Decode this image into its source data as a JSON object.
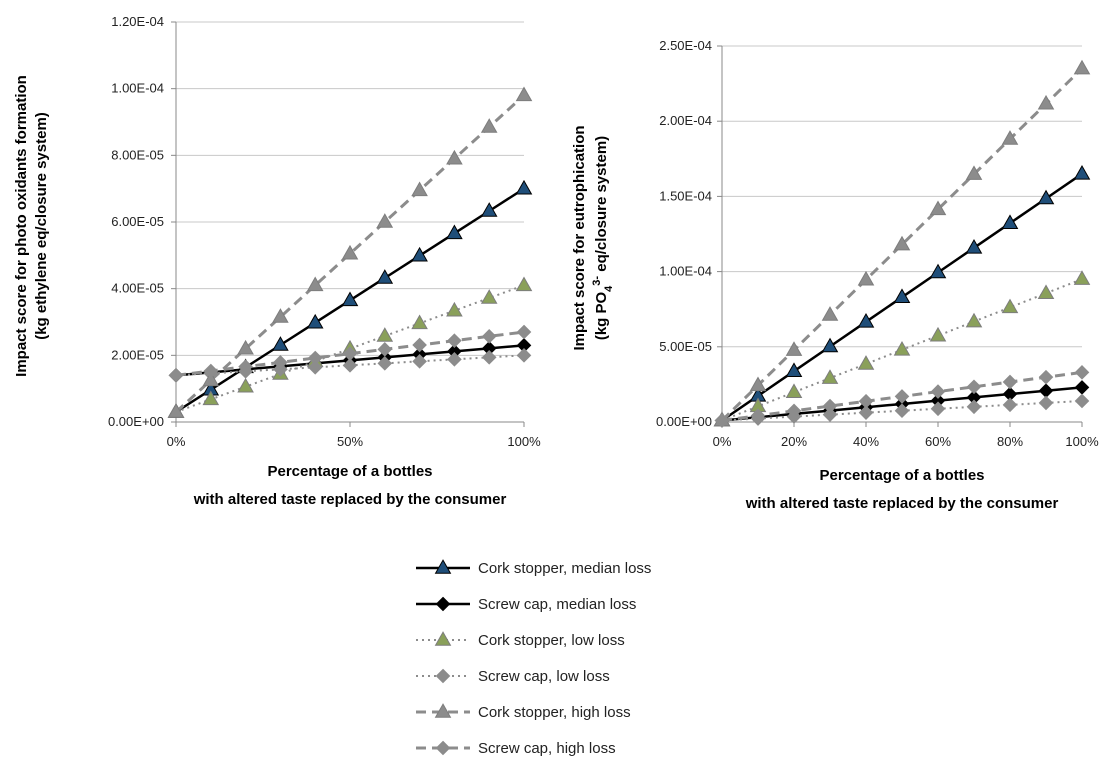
{
  "series_styles": [
    {
      "key": "cork_median",
      "color": "#000000",
      "marker": "triangle",
      "marker_fill": "#1f4e79",
      "dash": "",
      "width": 2.5
    },
    {
      "key": "screw_median",
      "color": "#000000",
      "marker": "diamond",
      "marker_fill": "#000000",
      "dash": "",
      "width": 2.5
    },
    {
      "key": "cork_low",
      "color": "#8c8c8c",
      "marker": "triangle",
      "marker_fill": "#8aa05a",
      "dash": "2,4",
      "width": 2
    },
    {
      "key": "screw_low",
      "color": "#8c8c8c",
      "marker": "diamond",
      "marker_fill": "#8c8c8c",
      "dash": "2,4",
      "width": 2
    },
    {
      "key": "cork_high",
      "color": "#8c8c8c",
      "marker": "triangle",
      "marker_fill": "#8c8c8c",
      "dash": "10,6",
      "width": 3
    },
    {
      "key": "screw_high",
      "color": "#8c8c8c",
      "marker": "diamond",
      "marker_fill": "#8c8c8c",
      "dash": "10,6",
      "width": 3
    }
  ],
  "legend": {
    "placement": "bottom-center",
    "items": [
      "Cork stopper, median loss",
      "Screw cap, median loss",
      "Cork stopper, low loss",
      "Screw cap, low loss",
      "Cork stopper, high loss",
      "Screw cap, high loss"
    ]
  },
  "chart_data": [
    {
      "type": "line",
      "ylabel_lines": [
        "Impact score for photo oxidants formation",
        "(kg ethylene  eq/closure system)"
      ],
      "xlabel_lines": [
        "Percentage of a bottles",
        "with altered taste replaced by the consumer"
      ],
      "x": [
        0,
        10,
        20,
        30,
        40,
        50,
        60,
        70,
        80,
        90,
        100
      ],
      "xlim": [
        0,
        100
      ],
      "x_ticks": [
        0,
        50,
        100
      ],
      "x_tick_labels": [
        "0%",
        "50%",
        "100%"
      ],
      "ylim": [
        0,
        0.00012
      ],
      "y_ticks": [
        0,
        2e-05,
        4e-05,
        6e-05,
        8e-05,
        0.0001,
        0.00012
      ],
      "y_tick_labels": [
        "0.00E+00",
        "2.00E-05",
        "4.00E-05",
        "6.00E-05",
        "8.00E-05",
        "1.00E-04",
        "1.20E-04"
      ],
      "grid": "horizontal",
      "series": [
        {
          "name": "Cork stopper, median loss",
          "values": [
            3e-06,
            9.7e-06,
            1.64e-05,
            2.31e-05,
            2.98e-05,
            3.65e-05,
            4.32e-05,
            4.99e-05,
            5.66e-05,
            6.33e-05,
            7e-05
          ]
        },
        {
          "name": "Screw cap, median loss",
          "values": [
            1.4e-05,
            1.49e-05,
            1.58e-05,
            1.67e-05,
            1.76e-05,
            1.85e-05,
            1.94e-05,
            2.03e-05,
            2.12e-05,
            2.21e-05,
            2.3e-05
          ]
        },
        {
          "name": "Cork stopper, low loss",
          "values": [
            3e-06,
            6.8e-06,
            1.06e-05,
            1.44e-05,
            1.82e-05,
            2.2e-05,
            2.58e-05,
            2.96e-05,
            3.34e-05,
            3.72e-05,
            4.1e-05
          ]
        },
        {
          "name": "Screw cap, low loss",
          "values": [
            1.4e-05,
            1.46e-05,
            1.52e-05,
            1.58e-05,
            1.64e-05,
            1.7e-05,
            1.76e-05,
            1.82e-05,
            1.88e-05,
            1.94e-05,
            2e-05
          ]
        },
        {
          "name": "Cork stopper, high loss",
          "values": [
            3e-06,
            1.25e-05,
            2.2e-05,
            3.15e-05,
            4.1e-05,
            5.05e-05,
            6e-05,
            6.95e-05,
            7.9e-05,
            8.85e-05,
            9.8e-05
          ]
        },
        {
          "name": "Screw cap, high loss",
          "values": [
            1.4e-05,
            1.53e-05,
            1.66e-05,
            1.79e-05,
            1.92e-05,
            2.05e-05,
            2.18e-05,
            2.31e-05,
            2.44e-05,
            2.57e-05,
            2.7e-05
          ]
        }
      ]
    },
    {
      "type": "line",
      "ylabel_lines": [
        "Impact score for eutrophication",
        "(kg PO"
      ],
      "ylabel_sub": "4",
      "ylabel_sup": "3-",
      "ylabel_tail": " eq/closure system)",
      "xlabel_lines": [
        "Percentage of a bottles",
        "with altered taste replaced by the consumer"
      ],
      "x": [
        0,
        10,
        20,
        30,
        40,
        50,
        60,
        70,
        80,
        90,
        100
      ],
      "xlim": [
        0,
        100
      ],
      "x_ticks": [
        0,
        20,
        40,
        60,
        80,
        100
      ],
      "x_tick_labels": [
        "0%",
        "20%",
        "40%",
        "60%",
        "80%",
        "100%"
      ],
      "ylim": [
        0,
        0.00025
      ],
      "y_ticks": [
        0,
        5e-05,
        0.0001,
        0.00015,
        0.0002,
        0.00025
      ],
      "y_tick_labels": [
        "0.00E+00",
        "5.00E-05",
        "1.00E-04",
        "1.50E-04",
        "2.00E-04",
        "2.50E-04"
      ],
      "grid": "horizontal",
      "series": [
        {
          "name": "Cork stopper, median loss",
          "values": [
            1e-06,
            1.74e-05,
            3.38e-05,
            5.02e-05,
            6.66e-05,
            8.3e-05,
            9.94e-05,
            0.0001158,
            0.0001322,
            0.0001486,
            0.000165
          ]
        },
        {
          "name": "Screw cap, median loss",
          "values": [
            1e-06,
            3.2e-06,
            5.4e-06,
            7.6e-06,
            9.8e-06,
            1.2e-05,
            1.42e-05,
            1.64e-05,
            1.86e-05,
            2.08e-05,
            2.3e-05
          ]
        },
        {
          "name": "Cork stopper, low loss",
          "values": [
            1e-06,
            1.04e-05,
            1.98e-05,
            2.92e-05,
            3.86e-05,
            4.8e-05,
            5.74e-05,
            6.68e-05,
            7.62e-05,
            8.56e-05,
            9.5e-05
          ]
        },
        {
          "name": "Screw cap, low loss",
          "values": [
            1e-06,
            2.3e-06,
            3.6e-06,
            4.9e-06,
            6.2e-06,
            7.5e-06,
            8.8e-06,
            1.01e-05,
            1.14e-05,
            1.27e-05,
            1.4e-05
          ]
        },
        {
          "name": "Cork stopper, high loss",
          "values": [
            1e-06,
            2.44e-05,
            4.78e-05,
            7.12e-05,
            9.46e-05,
            0.000118,
            0.0001414,
            0.0001648,
            0.0001882,
            0.0002116,
            0.000235
          ]
        },
        {
          "name": "Screw cap, high loss",
          "values": [
            1e-06,
            4.2e-06,
            7.4e-06,
            1.06e-05,
            1.38e-05,
            1.7e-05,
            2.02e-05,
            2.34e-05,
            2.66e-05,
            2.98e-05,
            3.3e-05
          ]
        }
      ]
    }
  ]
}
